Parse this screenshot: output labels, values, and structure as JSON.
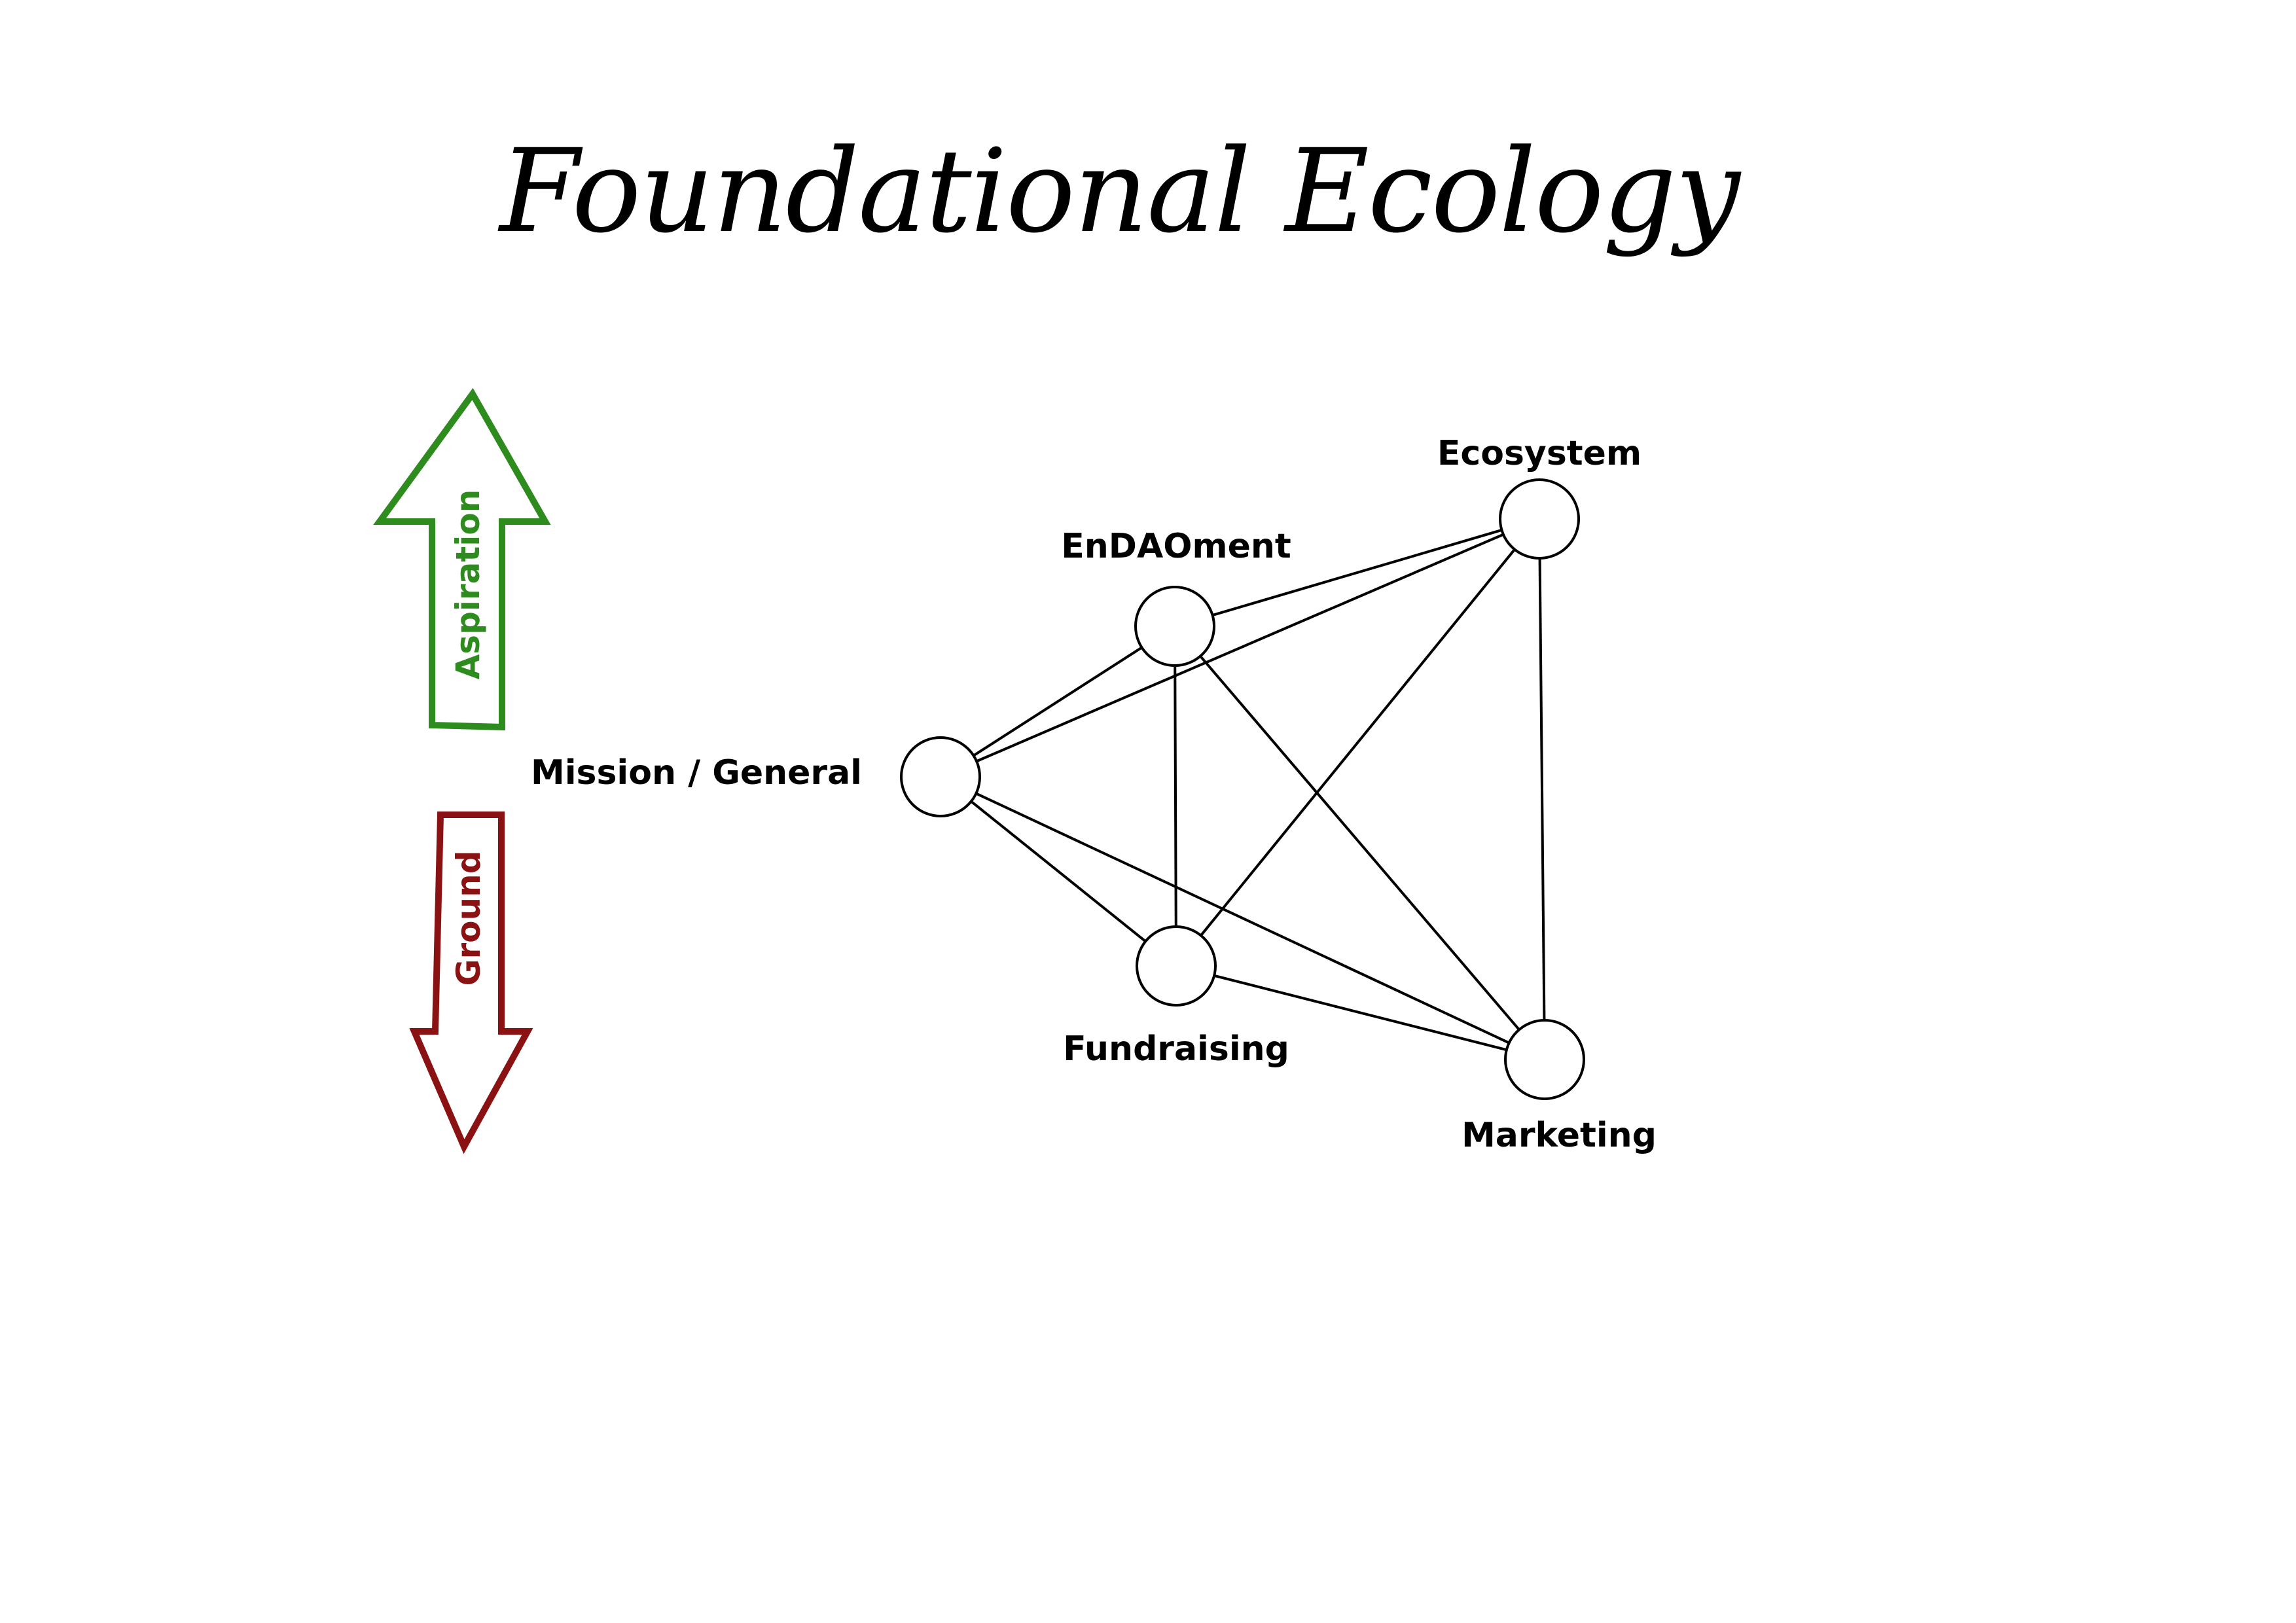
{
  "title": "Foundational Ecology",
  "arrows": {
    "up": {
      "label": "Aspiration",
      "color": "#2e8b1e"
    },
    "down": {
      "label": "Ground",
      "color": "#8b1212"
    }
  },
  "nodes": {
    "ecosystem": {
      "label": "Ecosystem"
    },
    "endaoment": {
      "label": "EnDAOment"
    },
    "mission": {
      "label": "Mission / General"
    },
    "fundraising": {
      "label": "Fundraising"
    },
    "marketing": {
      "label": "Marketing"
    }
  },
  "edges": [
    [
      "mission",
      "endaoment"
    ],
    [
      "mission",
      "ecosystem"
    ],
    [
      "mission",
      "fundraising"
    ],
    [
      "mission",
      "marketing"
    ],
    [
      "endaoment",
      "ecosystem"
    ],
    [
      "endaoment",
      "fundraising"
    ],
    [
      "endaoment",
      "marketing"
    ],
    [
      "ecosystem",
      "fundraising"
    ],
    [
      "ecosystem",
      "marketing"
    ],
    [
      "fundraising",
      "marketing"
    ]
  ]
}
